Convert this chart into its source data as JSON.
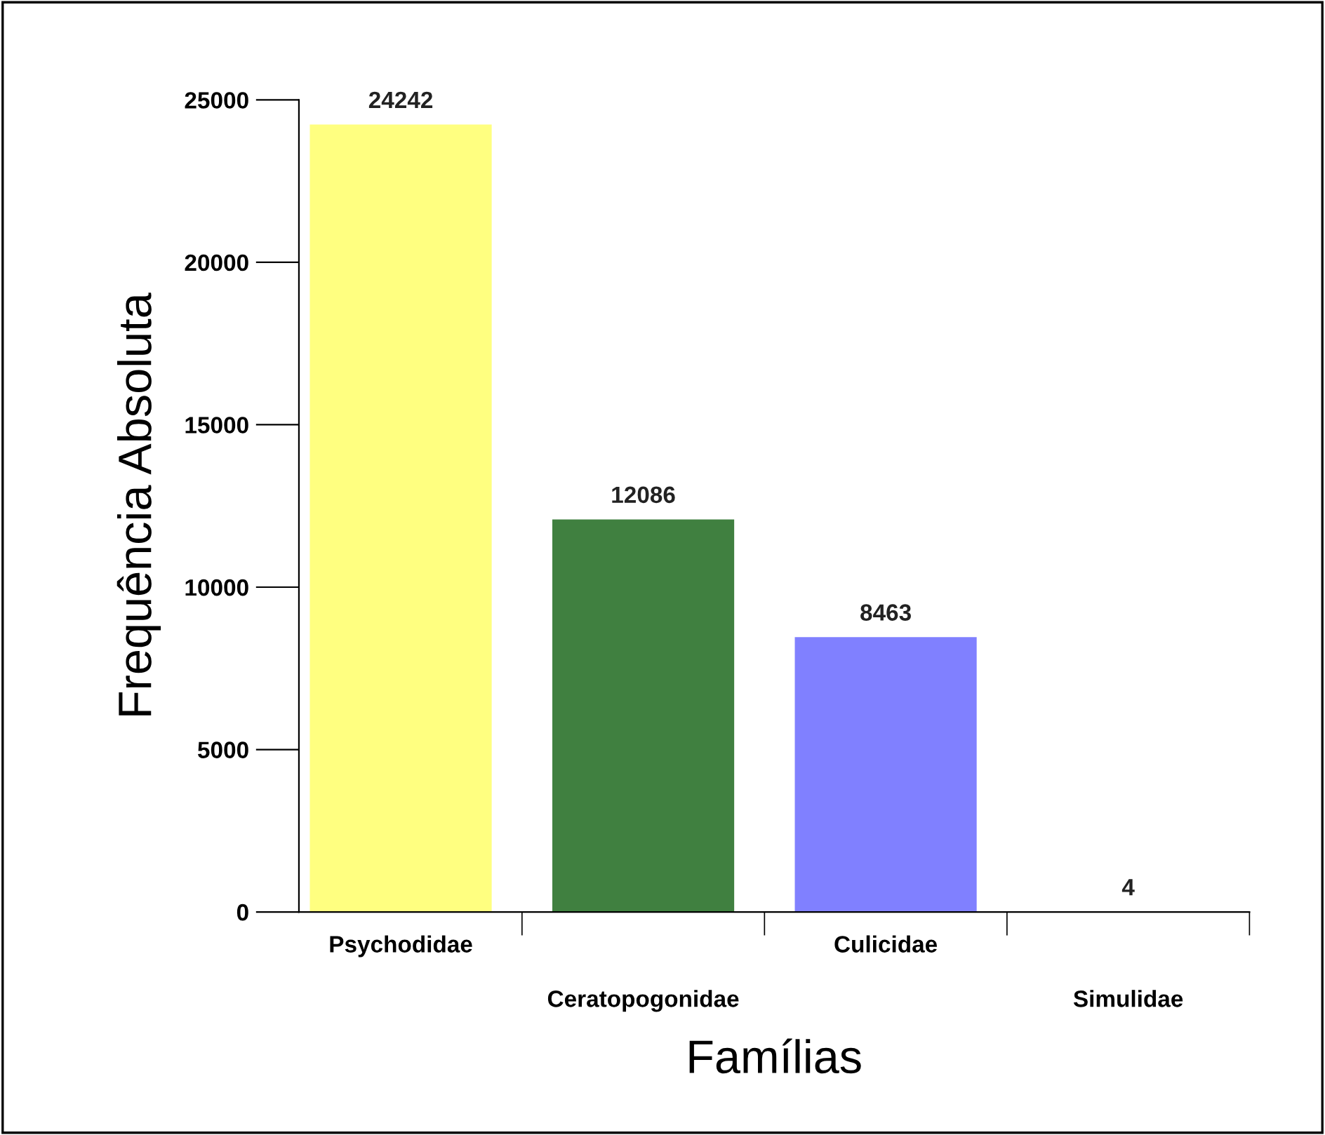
{
  "chart_data": {
    "type": "bar",
    "xlabel": "Famílias",
    "ylabel": "Frequência Absoluta",
    "categories": [
      "Psychodidae",
      "Ceratopogonidae",
      "Culicidae",
      "Simulidae"
    ],
    "values": [
      24242,
      12086,
      8463,
      4
    ],
    "colors": [
      "#ffff80",
      "#408040",
      "#8080ff",
      "#ff8080"
    ],
    "ylim": [
      0,
      25000
    ],
    "yticks": [
      0,
      5000,
      10000,
      15000,
      20000,
      25000
    ],
    "grid": false,
    "legend": false,
    "data_labels": true
  }
}
